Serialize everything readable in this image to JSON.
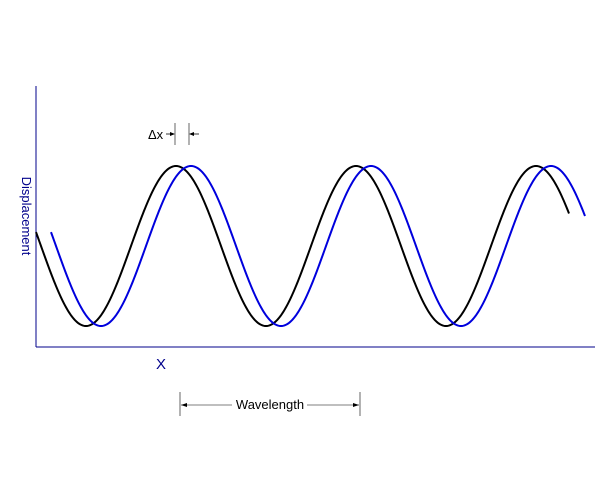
{
  "diagram": {
    "ylabel": "Displacement",
    "xlabel": "X",
    "delta_label": "Δx",
    "wavelength_label": "Wavelength",
    "axis_color": "#00008b",
    "wave1_color": "#000000",
    "wave2_color": "#0000dd",
    "annotation_color": "#000000"
  }
}
